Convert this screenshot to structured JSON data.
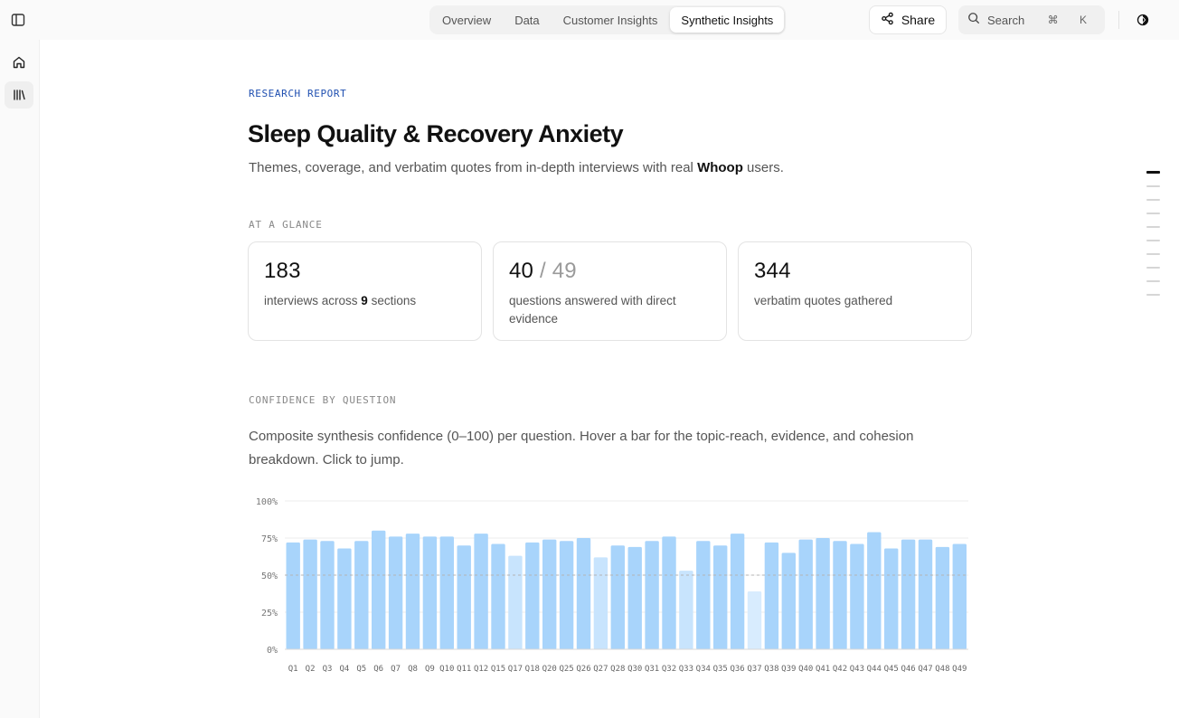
{
  "nav": {
    "tabs": [
      {
        "label": "Overview"
      },
      {
        "label": "Data"
      },
      {
        "label": "Customer Insights"
      },
      {
        "label": "Synthetic Insights",
        "active": true
      }
    ],
    "share_label": "Share",
    "search_label": "Search",
    "search_shortcut": "⌘ K"
  },
  "report": {
    "eyebrow": "RESEARCH REPORT",
    "title": "Sleep Quality & Recovery Anxiety",
    "subtitle_pre": "Themes, coverage, and verbatim quotes from in-depth interviews with real ",
    "subtitle_brand": "Whoop",
    "subtitle_post": " users."
  },
  "glance": {
    "label": "AT A GLANCE",
    "cards": [
      {
        "value": "183",
        "desc_pre": "interviews across ",
        "desc_bold": "9",
        "desc_post": " sections"
      },
      {
        "value": "40",
        "value_total": "/ 49",
        "desc": "questions answered with direct evidence"
      },
      {
        "value": "344",
        "desc": "verbatim quotes gathered"
      }
    ]
  },
  "confidence": {
    "label": "CONFIDENCE BY QUESTION",
    "description": "Composite synthesis confidence (0–100) per question. Hover a bar for the topic-reach, evidence, and cohesion breakdown. Click to jump."
  },
  "colors": {
    "bar": "#a8d4fb",
    "bar_low": "#c8e4fd",
    "bar_min": "#d8ecfe",
    "eyebrow": "#1f4fb0"
  },
  "icons": {
    "sidebar_toggle": "panel-left-icon",
    "share": "share-icon",
    "search": "search-icon",
    "theme": "contrast-icon",
    "home": "home-icon",
    "library": "library-icon"
  },
  "chart_data": {
    "type": "bar",
    "yticks": [
      "100%",
      "75%",
      "50%",
      "25%",
      "0%"
    ],
    "ylim": [
      0,
      100
    ],
    "reference_line": 50,
    "categories": [
      "Q1",
      "Q2",
      "Q3",
      "Q4",
      "Q5",
      "Q6",
      "Q7",
      "Q8",
      "Q9",
      "Q10",
      "Q11",
      "Q12",
      "Q15",
      "Q17",
      "Q18",
      "Q20",
      "Q25",
      "Q26",
      "Q27",
      "Q28",
      "Q30",
      "Q31",
      "Q32",
      "Q33",
      "Q34",
      "Q35",
      "Q36",
      "Q37",
      "Q38",
      "Q39",
      "Q40",
      "Q41",
      "Q42",
      "Q43",
      "Q44",
      "Q45",
      "Q46",
      "Q47",
      "Q48",
      "Q49"
    ],
    "values": [
      72,
      74,
      73,
      68,
      73,
      80,
      76,
      78,
      76,
      76,
      70,
      78,
      71,
      63,
      72,
      74,
      73,
      75,
      62,
      70,
      69,
      73,
      76,
      53,
      73,
      70,
      78,
      39,
      72,
      65,
      74,
      75,
      73,
      71,
      79,
      68,
      74,
      74,
      69,
      71
    ]
  },
  "toc": {
    "count": 10,
    "active": 0
  }
}
